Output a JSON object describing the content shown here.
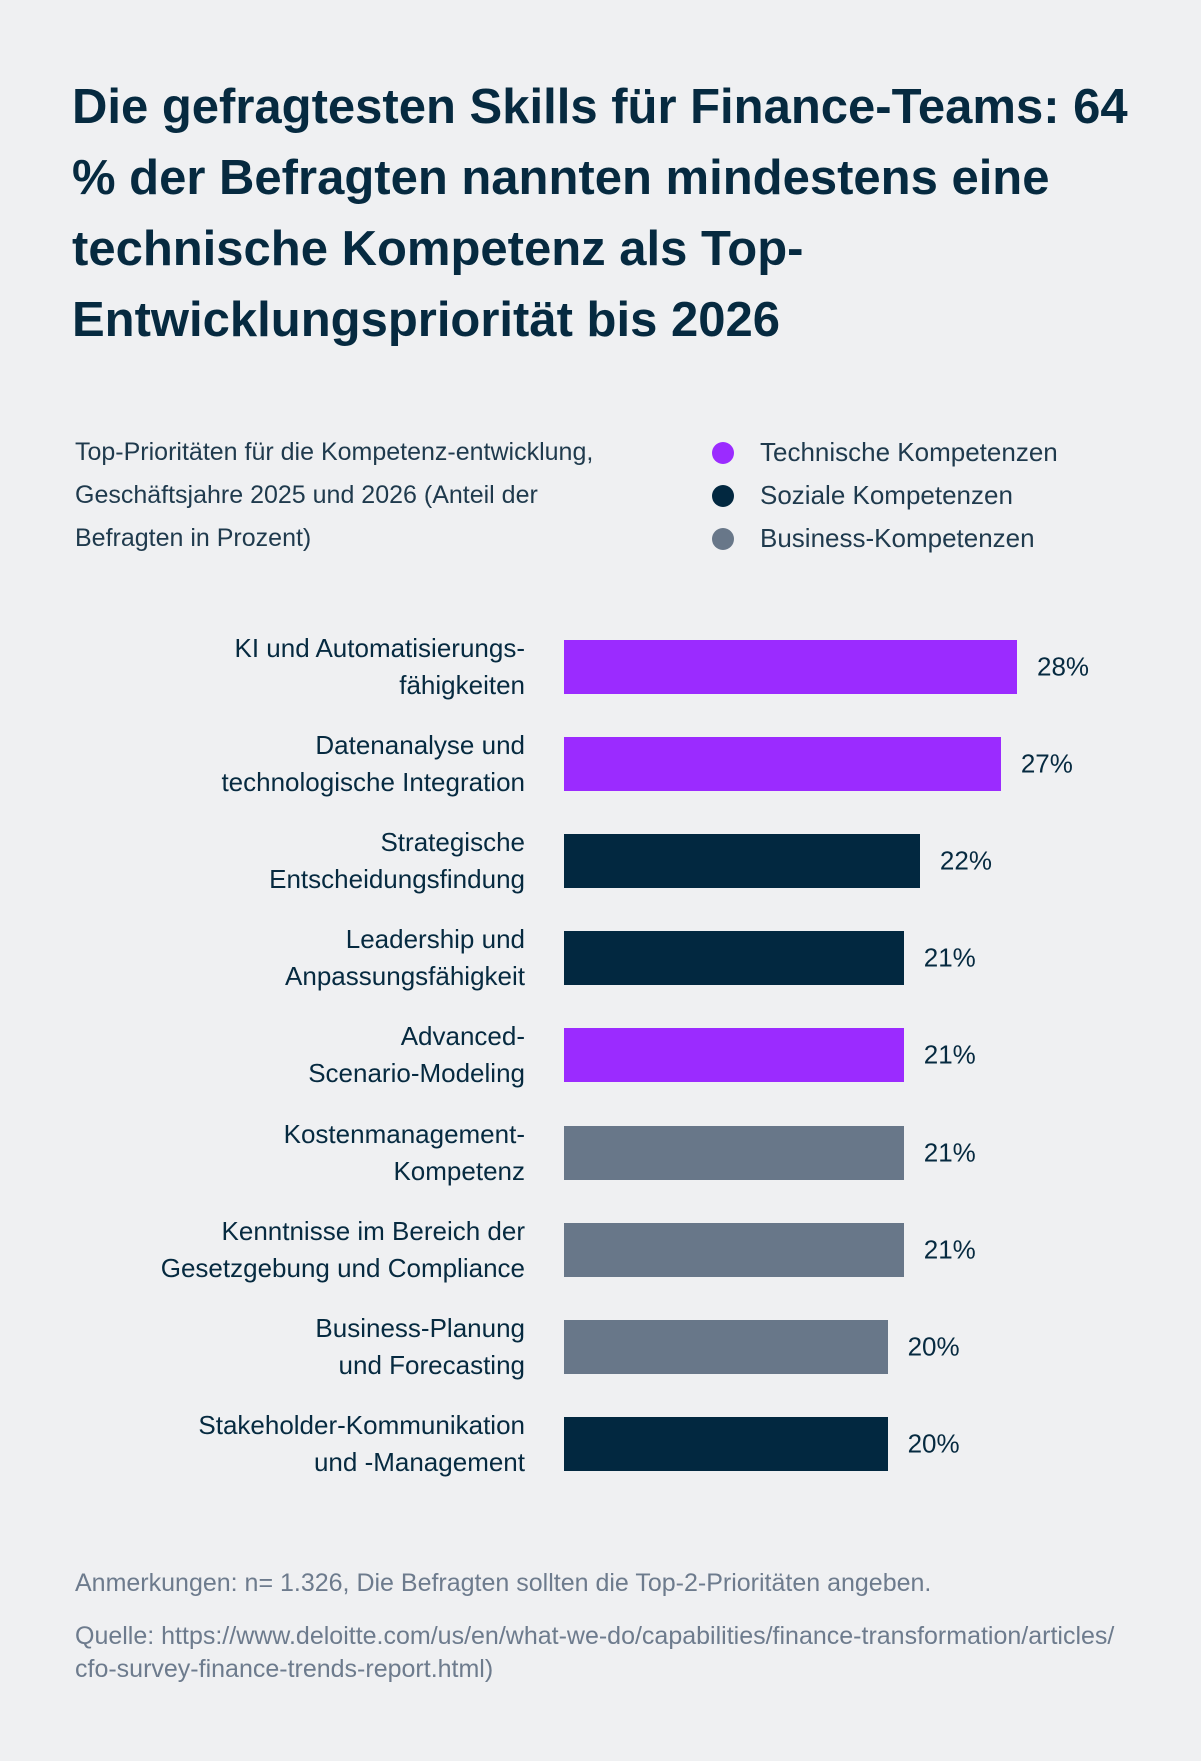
{
  "chart_data": {
    "type": "bar",
    "orientation": "horizontal",
    "title": "Die gefragtesten Skills für Finance-Teams: 64 % der Befragten nannten mindestens eine technische Kompetenz als Top-Entwicklungspriorität bis 2026",
    "subtitle": "Top-Prioritäten für die Kompetenz-entwicklung, Geschäftsjahre 2025 und 2026 (Anteil der Befragten in Prozent)",
    "legend": [
      {
        "name": "Technische Kompetenzen",
        "color": "#9b2bff"
      },
      {
        "name": "Soziale Kompetenzen",
        "color": "#022840"
      },
      {
        "name": "Business-Kompetenzen",
        "color": "#687789"
      }
    ],
    "legend_position": "top-right",
    "grid": false,
    "unit": "%",
    "xlim": [
      0,
      28
    ],
    "categories": [
      [
        "KI und Automatisierungs-",
        "fähigkeiten"
      ],
      [
        "Datenanalyse und",
        "technologische Integration"
      ],
      [
        "Strategische",
        "Entscheidungsfindung"
      ],
      [
        "Leadership und",
        "Anpassungsfähigkeit"
      ],
      [
        "Advanced-",
        "Scenario-Modeling"
      ],
      [
        "Kostenmanagement-",
        "Kompetenz"
      ],
      [
        "Kenntnisse im Bereich der",
        "Gesetzgebung und Compliance"
      ],
      [
        "Business-Planung",
        "und Forecasting"
      ],
      [
        "Stakeholder-Kommunikation",
        "und -Management"
      ]
    ],
    "values": [
      28,
      27,
      22,
      21,
      21,
      21,
      21,
      20,
      20
    ],
    "value_labels": [
      "28%",
      "27%",
      "22%",
      "21%",
      "21%",
      "21%",
      "21%",
      "20%",
      "20%"
    ],
    "groups": [
      0,
      0,
      1,
      1,
      0,
      2,
      2,
      2,
      1
    ]
  },
  "footer": {
    "note": "Anmerkungen: n= 1.326, Die Befragten sollten die Top-2-Prioritäten angeben.",
    "source": "Quelle: https://www.deloitte.com/us/en/what-we-do/capabilities/finance-transformation/articles/cfo-survey-finance-trends-report.html)"
  }
}
